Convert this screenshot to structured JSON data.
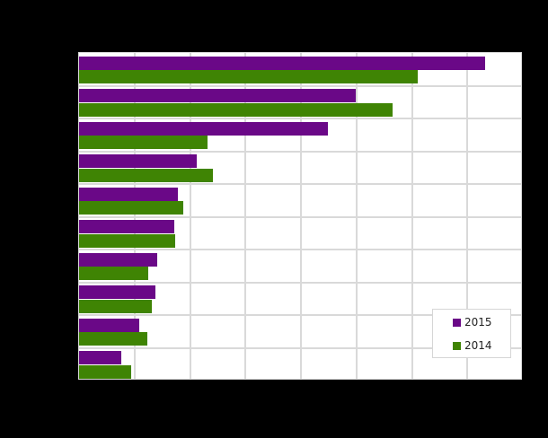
{
  "chart_data": {
    "type": "bar",
    "orientation": "horizontal",
    "title": "",
    "xlabel": "",
    "ylabel": "",
    "categories": [
      "",
      "",
      "",
      "",
      "",
      "",
      "",
      "",
      "",
      ""
    ],
    "value_units": "gridline intervals (tick labels not visible)",
    "xlim": [
      0,
      8
    ],
    "grid": true,
    "legend_position": "lower right inside plot",
    "series": [
      {
        "name": "2015",
        "color": "#6a0887",
        "values": [
          7.32,
          4.99,
          4.49,
          2.12,
          1.78,
          1.72,
          1.41,
          1.38,
          1.09,
          0.76
        ]
      },
      {
        "name": "2014",
        "color": "#3f8404",
        "values": [
          6.11,
          5.65,
          2.32,
          2.41,
          1.88,
          1.73,
          1.25,
          1.31,
          1.23,
          0.94
        ]
      }
    ]
  },
  "legend": {
    "items": [
      {
        "label": "2015",
        "color": "#6a0887"
      },
      {
        "label": "2014",
        "color": "#3f8404"
      }
    ]
  },
  "colors": {
    "background": "#000000",
    "plot_background": "#ffffff",
    "gridline": "#d9d9d9"
  }
}
